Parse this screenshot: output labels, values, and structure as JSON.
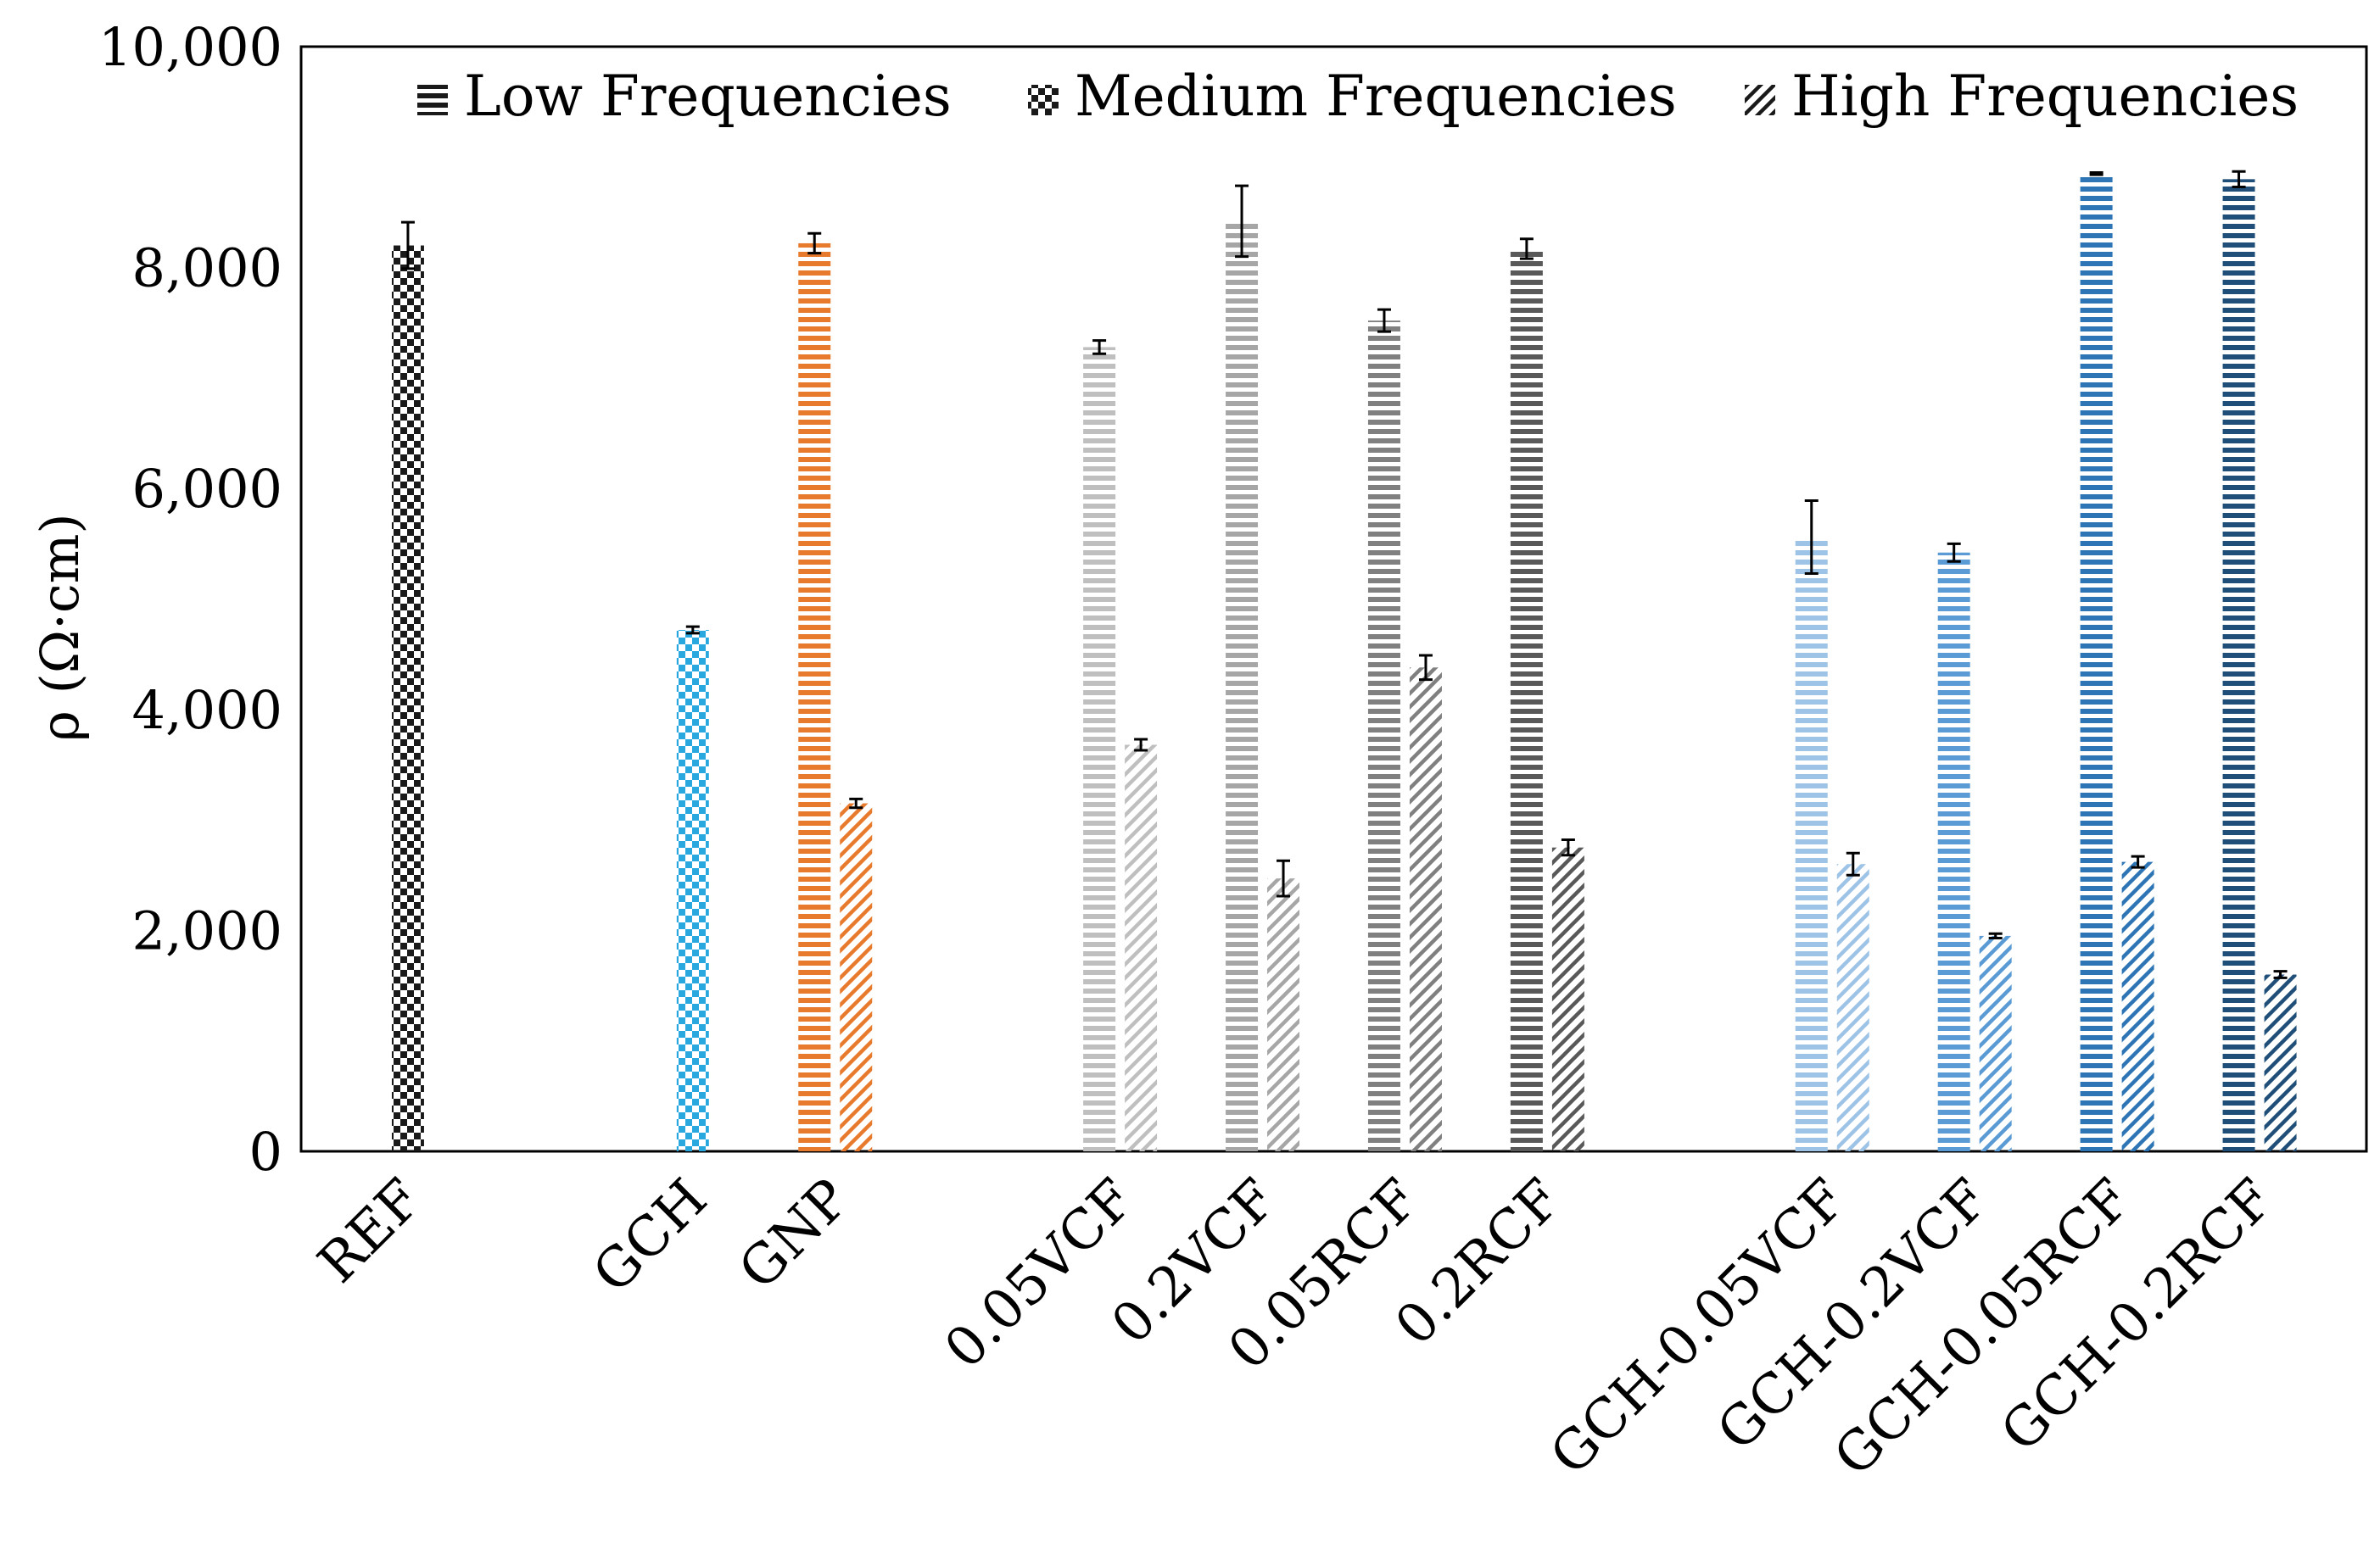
{
  "chart_data": {
    "type": "bar",
    "title": "",
    "xlabel": "",
    "ylabel": "ρ (Ω·cm)",
    "ylim": [
      0,
      10000
    ],
    "yticks": [
      0,
      2000,
      4000,
      6000,
      8000,
      10000
    ],
    "ytick_labels": [
      "0",
      "2,000",
      "4,000",
      "6,000",
      "8,000",
      "10,000"
    ],
    "grid": false,
    "legend_position": "top",
    "categories": [
      "REF",
      "GCH",
      "GNP",
      "0.05VCF",
      "0.2VCF",
      "0.05RCF",
      "0.2RCF",
      "GCH-0.05VCF",
      "GCH-0.2VCF",
      "GCH-0.05RCF",
      "GCH-0.2RCF"
    ],
    "slots": [
      0,
      2,
      3,
      5,
      6,
      7,
      8,
      10,
      11,
      12,
      13
    ],
    "colors": [
      "#1a1a1a",
      "#29a8e0",
      "#e87a2e",
      "#bfbfbf",
      "#a6a6a6",
      "#808080",
      "#595959",
      "#9dc3e6",
      "#5b9bd5",
      "#2e75b6",
      "#1f4e79"
    ],
    "series": [
      {
        "name": "Low Frequencies",
        "pattern": "horizontal-lines",
        "values": [
          null,
          null,
          8220,
          7280,
          8420,
          7520,
          8170,
          5560,
          5420,
          8850,
          8800
        ],
        "errors": [
          null,
          null,
          90,
          60,
          320,
          100,
          90,
          330,
          80,
          10,
          70
        ]
      },
      {
        "name": "Medium Frequencies",
        "pattern": "checkerboard",
        "values": [
          8200,
          4720,
          null,
          null,
          null,
          null,
          null,
          null,
          null,
          null,
          null
        ],
        "errors": [
          210,
          30,
          null,
          null,
          null,
          null,
          null,
          null,
          null,
          null,
          null
        ]
      },
      {
        "name": "High Frequencies",
        "pattern": "diagonal-stripes",
        "values": [
          null,
          null,
          3150,
          3680,
          2470,
          4380,
          2750,
          2600,
          1950,
          2620,
          1600
        ],
        "errors": [
          null,
          null,
          40,
          50,
          160,
          110,
          70,
          100,
          20,
          50,
          30
        ]
      }
    ]
  }
}
